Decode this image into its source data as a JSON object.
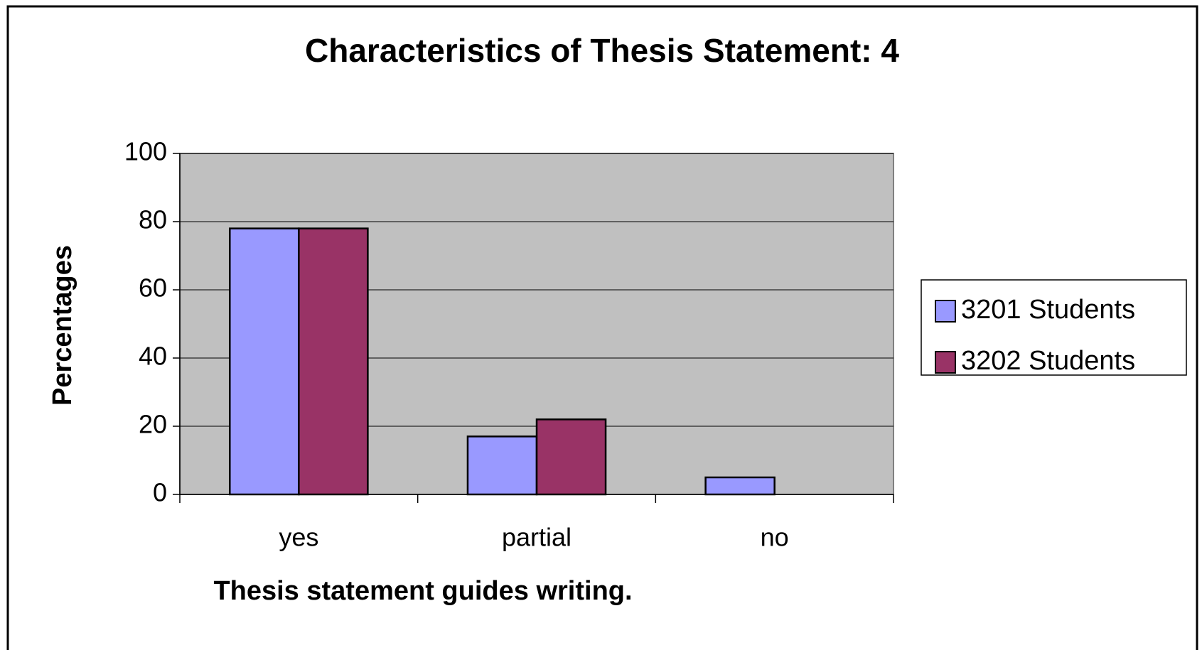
{
  "chart_data": {
    "type": "bar",
    "title": "Characteristics of Thesis Statement: 4",
    "x_label": "Thesis statement guides writing.",
    "y_label": "Percentages",
    "categories": [
      "yes",
      "partial",
      "no"
    ],
    "series": [
      {
        "name": "3201 Students",
        "color": "#9999ff",
        "values": [
          78,
          17,
          5
        ]
      },
      {
        "name": "3202 Students",
        "color": "#993366",
        "values": [
          78,
          22,
          0
        ]
      }
    ],
    "ylim": [
      0,
      100
    ],
    "yticks": [
      0,
      20,
      40,
      60,
      80,
      100
    ],
    "grid": true,
    "legend": "right"
  }
}
